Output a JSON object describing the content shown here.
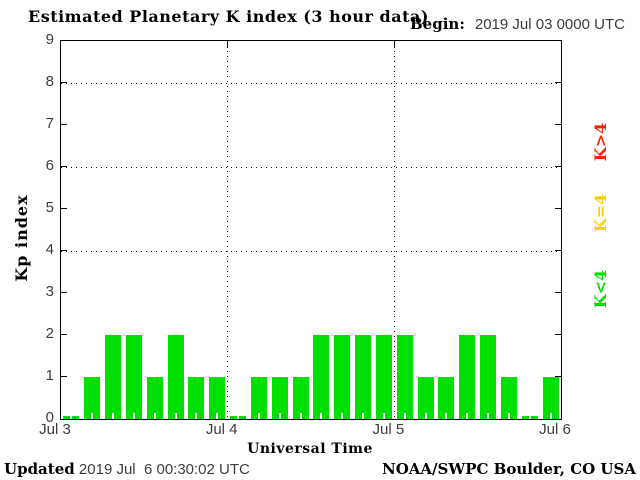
{
  "title": "Estimated Planetary K index (3 hour data)",
  "begin": {
    "label": "Begin:",
    "value": "2019 Jul 03 0000 UTC"
  },
  "axes": {
    "y_label": "Kp index",
    "x_label": "Universal Time",
    "y_ticks": [
      "0",
      "1",
      "2",
      "3",
      "4",
      "5",
      "6",
      "7",
      "8",
      "9"
    ],
    "x_ticks": [
      "Jul 3",
      "Jul 4",
      "Jul 5",
      "Jul 6"
    ]
  },
  "legend": [
    {
      "label": "K>4",
      "color": "#ff2200"
    },
    {
      "label": "K=4",
      "color": "#ffd000"
    },
    {
      "label": "K<4",
      "color": "#00e000"
    }
  ],
  "footer": {
    "updated_label": "Updated",
    "updated_value": "2019 Jul  6 00:30:02 UTC",
    "source": "NOAA/SWPC Boulder, CO USA"
  },
  "chart_data": {
    "type": "bar",
    "title": "Estimated Planetary K index (3 hour data)",
    "xlabel": "Universal Time",
    "ylabel": "Kp index",
    "ylim": [
      0,
      9
    ],
    "interval_hours": 3,
    "x_tick_labels": [
      "Jul 3",
      "Jul 4",
      "Jul 5",
      "Jul 6"
    ],
    "series": [
      {
        "name": "2019 Jul 3",
        "values": [
          0,
          1,
          2,
          2,
          1,
          2,
          1,
          1
        ]
      },
      {
        "name": "2019 Jul 4",
        "values": [
          0,
          1,
          1,
          1,
          2,
          2,
          2,
          2
        ]
      },
      {
        "name": "2019 Jul 5",
        "values": [
          2,
          1,
          1,
          2,
          2,
          1,
          0,
          1
        ]
      }
    ],
    "bar_color_rules": {
      "K<4": "#00e000",
      "K=4": "#ffd000",
      "K>4": "#ff2200"
    },
    "gridlines_y": [
      4,
      6,
      8
    ],
    "grid_style": "dotted",
    "legend_position": "right"
  }
}
